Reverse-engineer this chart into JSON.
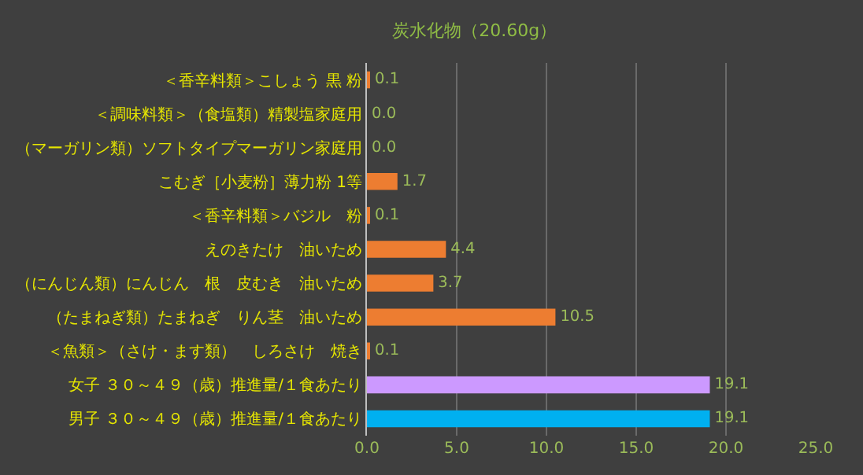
{
  "chart_data": {
    "type": "bar",
    "orientation": "horizontal",
    "title": "炭水化物（20.60g）",
    "categories": [
      "＜香辛料類＞こしょう 黒 粉",
      "＜調味料類＞（食塩類）精製塩家庭用",
      "（マーガリン類）ソフトタイプマーガリン家庭用",
      "こむぎ［小麦粉］薄力粉 1等",
      "＜香辛料類＞バジル　粉",
      "えのきたけ　油いため",
      "（にんじん類）にんじん　根　皮むき　油いため",
      "（たまねぎ類）たまねぎ　りん茎　油いため",
      "＜魚類＞（さけ・ます類）　しろさけ　焼き",
      "女子 ３０～４９（歳）推進量/１食あたり",
      "男子 ３０～４９（歳）推進量/１食あたり"
    ],
    "values": [
      0.1,
      0,
      0,
      1.7,
      0.1,
      4.4,
      3.7,
      10.5,
      0.1,
      19.1,
      19.1
    ],
    "value_labels": [
      "0.1",
      "0.0",
      "0.0",
      "1.7",
      "0.1",
      "4.4",
      "3.7",
      "10.5",
      "0.1",
      "19.1",
      "19.1"
    ],
    "colors": [
      "#ed7d31",
      "#ed7d31",
      "#ed7d31",
      "#ed7d31",
      "#ed7d31",
      "#ed7d31",
      "#ed7d31",
      "#ed7d31",
      "#ed7d31",
      "#cc99ff",
      "#00b0f0"
    ],
    "xlim": [
      0,
      25
    ],
    "xticks": [
      {
        "value": 0,
        "label": "0.0"
      },
      {
        "value": 5,
        "label": "5.0"
      },
      {
        "value": 10,
        "label": "10.0"
      },
      {
        "value": 15,
        "label": "15.0"
      },
      {
        "value": 20,
        "label": "20.0"
      },
      {
        "value": 25,
        "label": "25.0"
      }
    ],
    "grid": "x",
    "legend": false
  }
}
